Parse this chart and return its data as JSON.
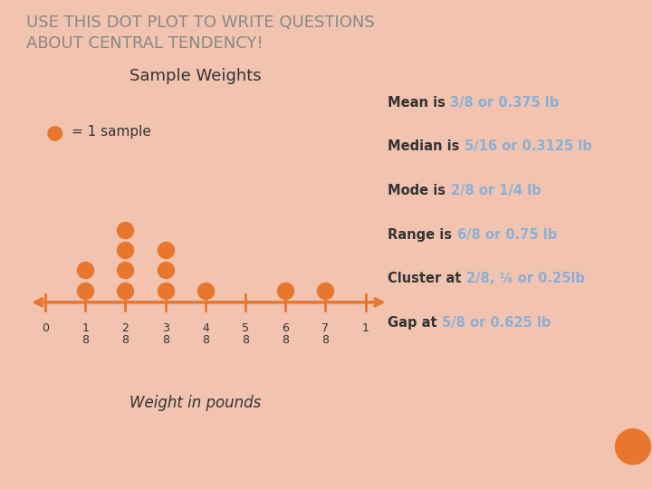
{
  "title": "USE THIS DOT PLOT TO WRITE QUESTIONS\nABOUT CENTRAL TENDENCY!",
  "subtitle": "Sample Weights",
  "xlabel": "Weight in pounds",
  "legend_label": "= 1 sample",
  "dot_color": "#E8762C",
  "bg_color": "#FFFFFF",
  "outer_bg": "#F2C4B0",
  "title_color": "#888888",
  "text_dark": "#333333",
  "annotation_color": "#8BAFD4",
  "tick_labels": [
    "0",
    "1\n8",
    "2\n8",
    "3\n8",
    "4\n8",
    "5\n8",
    "6\n8",
    "7\n8",
    "1"
  ],
  "tick_values": [
    0,
    0.125,
    0.25,
    0.375,
    0.5,
    0.625,
    0.75,
    0.875,
    1.0
  ],
  "dot_counts": {
    "0.125": 2,
    "0.25": 4,
    "0.375": 3,
    "0.5": 1,
    "0.625": 0,
    "0.75": 1,
    "0.875": 1
  },
  "ann_items": [
    [
      "Mean is ",
      "3/8 or 0.375 lb"
    ],
    [
      "Median is ",
      "5/16 or 0.3125 lb"
    ],
    [
      "Mode is ",
      "2/8 or 1/4 lb"
    ],
    [
      "Range is ",
      "6/8 or 0.75 lb"
    ],
    [
      "Cluster at ",
      "2/8, ¼ or 0.25lb"
    ],
    [
      "Gap at ",
      "5/8 or 0.625 lb"
    ]
  ]
}
